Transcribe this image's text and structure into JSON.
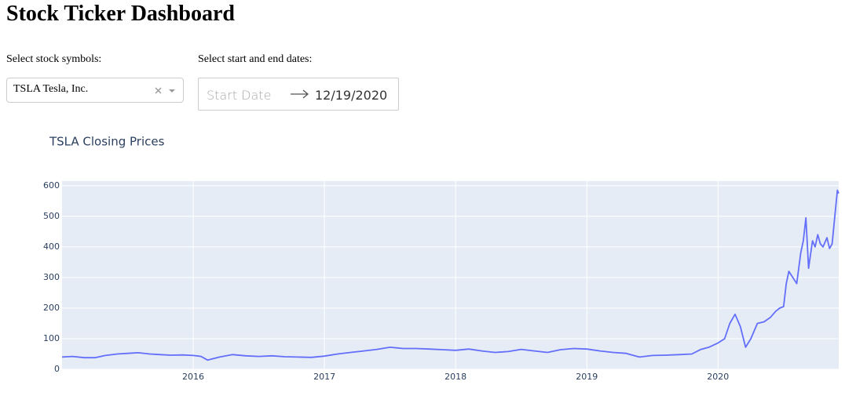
{
  "header": {
    "title": "Stock Ticker Dashboard"
  },
  "controls": {
    "symbol_label": "Select stock symbols:",
    "symbol_value": "TSLA Tesla, Inc.",
    "date_label": "Select start and end dates:",
    "start_placeholder": "Start Date",
    "end_date": "12/19/2020"
  },
  "chart_data": {
    "type": "line",
    "title": "TSLA Closing Prices",
    "x": [
      2015.0,
      2015.08,
      2015.17,
      2015.25,
      2015.33,
      2015.42,
      2015.5,
      2015.58,
      2015.67,
      2015.75,
      2015.83,
      2015.92,
      2016.0,
      2016.06,
      2016.11,
      2016.2,
      2016.3,
      2016.4,
      2016.5,
      2016.6,
      2016.7,
      2016.8,
      2016.9,
      2017.0,
      2017.1,
      2017.2,
      2017.3,
      2017.4,
      2017.5,
      2017.6,
      2017.7,
      2017.8,
      2017.9,
      2018.0,
      2018.1,
      2018.2,
      2018.3,
      2018.4,
      2018.5,
      2018.6,
      2018.7,
      2018.8,
      2018.9,
      2019.0,
      2019.1,
      2019.2,
      2019.3,
      2019.4,
      2019.5,
      2019.6,
      2019.7,
      2019.8,
      2019.87,
      2019.93,
      2020.0,
      2020.05,
      2020.09,
      2020.13,
      2020.17,
      2020.21,
      2020.25,
      2020.3,
      2020.35,
      2020.4,
      2020.44,
      2020.47,
      2020.5,
      2020.52,
      2020.54,
      2020.57,
      2020.6,
      2020.63,
      2020.65,
      2020.67,
      2020.69,
      2020.72,
      2020.74,
      2020.76,
      2020.78,
      2020.8,
      2020.83,
      2020.85,
      2020.87,
      2020.89,
      2020.91,
      2020.92
    ],
    "values": [
      40,
      42,
      38,
      38,
      45,
      50,
      52,
      54,
      50,
      48,
      46,
      47,
      45,
      42,
      30,
      40,
      48,
      44,
      42,
      44,
      41,
      40,
      39,
      43,
      50,
      55,
      60,
      65,
      72,
      68,
      68,
      66,
      64,
      62,
      66,
      60,
      55,
      58,
      65,
      60,
      55,
      64,
      68,
      66,
      60,
      55,
      52,
      40,
      45,
      46,
      48,
      50,
      65,
      72,
      86,
      100,
      150,
      180,
      140,
      72,
      100,
      150,
      155,
      170,
      190,
      200,
      205,
      280,
      320,
      300,
      280,
      380,
      420,
      495,
      330,
      420,
      400,
      440,
      410,
      400,
      430,
      395,
      410,
      500,
      585,
      575
    ],
    "color": "#636efa",
    "xlim": [
      2015.0,
      2020.92
    ],
    "ylim": [
      0,
      615
    ],
    "xticks": [
      2016,
      2017,
      2018,
      2019,
      2020
    ],
    "yticks": [
      0,
      100,
      200,
      300,
      400,
      500,
      600
    ],
    "grid": true
  }
}
